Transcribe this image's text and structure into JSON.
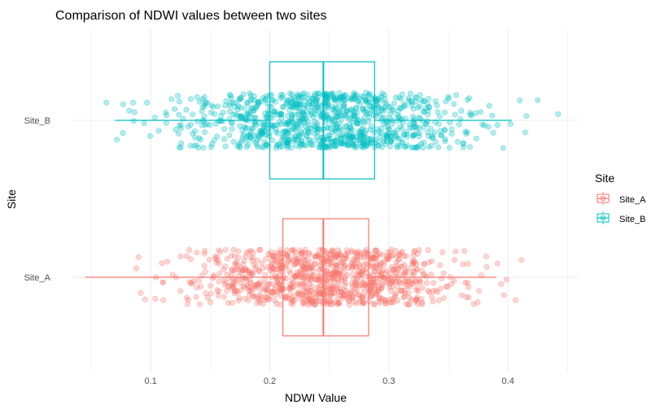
{
  "chart_data": {
    "type": "boxplot",
    "orientation": "horizontal",
    "title": "Comparison of NDWI values between two sites",
    "xlabel": "NDWI Value",
    "ylabel": "Site",
    "xlim": [
      0.035,
      0.46
    ],
    "x_ticks": [
      0.1,
      0.2,
      0.3,
      0.4
    ],
    "x_tick_labels": [
      "0.1",
      "0.2",
      "0.3",
      "0.4"
    ],
    "categories": [
      "Site_A",
      "Site_B"
    ],
    "grid": true,
    "legend": {
      "title": "Site",
      "position": "right",
      "entries": [
        "Site_A",
        "Site_B"
      ]
    },
    "series": [
      {
        "name": "Site_A",
        "color": "#F8766D",
        "box": {
          "min": 0.045,
          "q1": 0.211,
          "median": 0.245,
          "q3": 0.283,
          "max": 0.39
        },
        "points_n": 1000,
        "points_mean": 0.246,
        "points_sd": 0.055
      },
      {
        "name": "Site_B",
        "color": "#00BFC4",
        "box": {
          "min": 0.07,
          "q1": 0.2,
          "median": 0.245,
          "q3": 0.288,
          "max": 0.403
        },
        "points_n": 1000,
        "points_mean": 0.245,
        "points_sd": 0.06
      }
    ]
  }
}
